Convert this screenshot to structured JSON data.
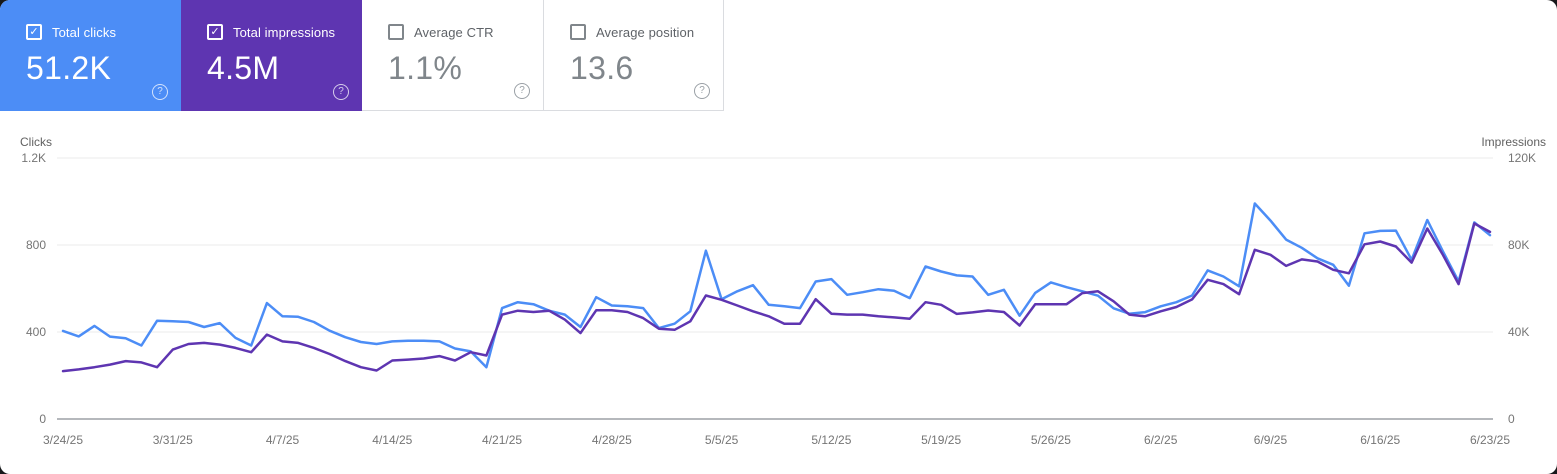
{
  "cards": [
    {
      "label": "Total clicks",
      "value": "51.2K",
      "checked": true,
      "bg": "#4c8df6",
      "help_icon": "?"
    },
    {
      "label": "Total impressions",
      "value": "4.5M",
      "checked": true,
      "bg": "#5e35b1",
      "help_icon": "?"
    },
    {
      "label": "Average CTR",
      "value": "1.1%",
      "checked": false,
      "bg": "#ffffff",
      "help_icon": "?"
    },
    {
      "label": "Average position",
      "value": "13.6",
      "checked": false,
      "bg": "#ffffff",
      "help_icon": "?"
    }
  ],
  "chart_data": {
    "type": "line",
    "left_axis": {
      "title": "Clicks",
      "ticks": [
        "1.2K",
        "800",
        "400",
        "0"
      ],
      "max": 1200
    },
    "right_axis": {
      "title": "Impressions",
      "ticks": [
        "120K",
        "80K",
        "40K",
        "0"
      ],
      "max": 120000
    },
    "x_labels": [
      "3/24/25",
      "3/31/25",
      "4/7/25",
      "4/14/25",
      "4/21/25",
      "4/28/25",
      "5/5/25",
      "5/12/25",
      "5/19/25",
      "5/26/25",
      "6/2/25",
      "6/9/25",
      "6/16/25",
      "6/23/25"
    ],
    "points_per_label_interval": 7,
    "grid": "horizontal-only",
    "series": [
      {
        "name": "Total clicks",
        "axis": "left",
        "color": "#4c8df6",
        "values": [
          405,
          380,
          428,
          379,
          371,
          338,
          452,
          449,
          446,
          423,
          441,
          373,
          338,
          533,
          472,
          470,
          446,
          406,
          376,
          354,
          345,
          357,
          360,
          360,
          357,
          324,
          311,
          238,
          510,
          537,
          528,
          498,
          480,
          423,
          560,
          522,
          518,
          510,
          418,
          438,
          495,
          774,
          551,
          587,
          615,
          525,
          518,
          510,
          632,
          643,
          571,
          583,
          597,
          590,
          556,
          701,
          678,
          660,
          655,
          571,
          594,
          475,
          580,
          628,
          606,
          587,
          567,
          509,
          484,
          491,
          518,
          537,
          568,
          683,
          655,
          610,
          991,
          912,
          825,
          787,
          739,
          709,
          613,
          854,
          865,
          866,
          732,
          915,
          770,
          632,
          904,
          845
        ]
      },
      {
        "name": "Total impressions",
        "axis": "right",
        "color": "#5e35b1",
        "values": [
          22000,
          22800,
          23800,
          25000,
          26600,
          26000,
          23800,
          31900,
          34500,
          35000,
          34200,
          32700,
          30700,
          38800,
          35700,
          35000,
          32700,
          29900,
          26600,
          23800,
          22300,
          26900,
          27300,
          27800,
          28900,
          26900,
          30700,
          29200,
          48000,
          49800,
          49200,
          49800,
          45700,
          39500,
          50000,
          50000,
          49200,
          46400,
          41500,
          41000,
          44900,
          56800,
          54800,
          52200,
          49500,
          47200,
          43800,
          43800,
          55100,
          48400,
          48000,
          48000,
          47200,
          46700,
          46100,
          53700,
          52500,
          48300,
          49000,
          49900,
          49200,
          43000,
          52800,
          52800,
          52800,
          57900,
          58700,
          54100,
          48000,
          47200,
          49500,
          51500,
          55000,
          64000,
          62000,
          57400,
          77800,
          75500,
          70400,
          73400,
          72400,
          68600,
          67000,
          80300,
          81600,
          79300,
          71900,
          87600,
          75400,
          62000,
          89900,
          86000
        ]
      }
    ],
    "colors": {
      "gridline": "#ebebeb",
      "baseline": "#b5b8bc",
      "tick_text": "#757575",
      "axis_title_text": "#616161"
    }
  }
}
